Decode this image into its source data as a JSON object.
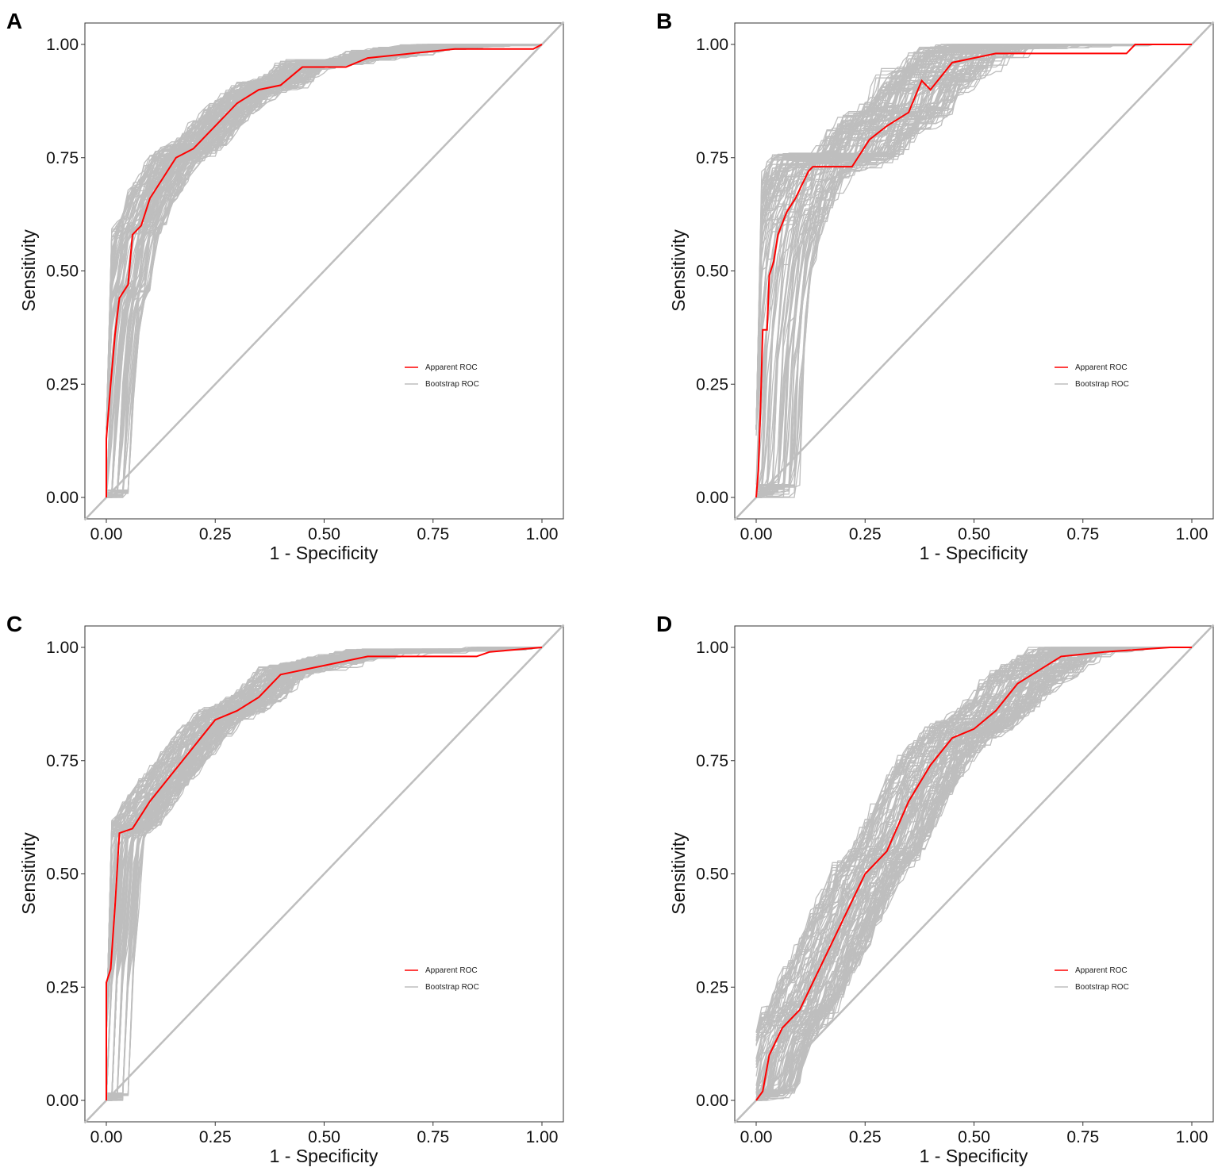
{
  "chart_data": [
    {
      "panel": "A",
      "type": "line",
      "xlabel": "1 - Specificity",
      "ylabel": "Sensitivity",
      "xlim": [
        0,
        1
      ],
      "ylim": [
        0,
        1
      ],
      "xticks": [
        "0.00",
        "0.25",
        "0.50",
        "0.75",
        "1.00"
      ],
      "yticks": [
        "0.00",
        "0.25",
        "0.50",
        "0.75",
        "1.00"
      ],
      "legend": [
        "Apparent ROC",
        "Bootstrap ROC"
      ],
      "legend_position": "lower-right",
      "colors": {
        "apparent": "#ff0000",
        "bootstrap": "#bebebe",
        "diagonal": "#bebebe"
      },
      "bootstrap": {
        "n_curves": 120,
        "spread": 0.055
      },
      "apparent_roc": [
        [
          0,
          0
        ],
        [
          0,
          0.13
        ],
        [
          0.01,
          0.25
        ],
        [
          0.02,
          0.36
        ],
        [
          0.03,
          0.44
        ],
        [
          0.05,
          0.47
        ],
        [
          0.06,
          0.58
        ],
        [
          0.08,
          0.6
        ],
        [
          0.1,
          0.66
        ],
        [
          0.12,
          0.69
        ],
        [
          0.16,
          0.75
        ],
        [
          0.2,
          0.77
        ],
        [
          0.25,
          0.82
        ],
        [
          0.3,
          0.87
        ],
        [
          0.35,
          0.9
        ],
        [
          0.4,
          0.91
        ],
        [
          0.45,
          0.95
        ],
        [
          0.55,
          0.95
        ],
        [
          0.6,
          0.97
        ],
        [
          0.7,
          0.98
        ],
        [
          0.8,
          0.99
        ],
        [
          0.98,
          0.99
        ],
        [
          1,
          1
        ]
      ]
    },
    {
      "panel": "B",
      "type": "line",
      "xlabel": "1 - Specificity",
      "ylabel": "Sensitivity",
      "xlim": [
        0,
        1
      ],
      "ylim": [
        0,
        1
      ],
      "xticks": [
        "0.00",
        "0.25",
        "0.50",
        "0.75",
        "1.00"
      ],
      "yticks": [
        "0.00",
        "0.25",
        "0.50",
        "0.75",
        "1.00"
      ],
      "legend": [
        "Apparent ROC",
        "Bootstrap ROC"
      ],
      "legend_position": "lower-right",
      "colors": {
        "apparent": "#ff0000",
        "bootstrap": "#bebebe",
        "diagonal": "#bebebe"
      },
      "bootstrap": {
        "n_curves": 120,
        "spread": 0.1
      },
      "apparent_roc": [
        [
          0,
          0
        ],
        [
          0.005,
          0.06
        ],
        [
          0.01,
          0.2
        ],
        [
          0.015,
          0.37
        ],
        [
          0.025,
          0.37
        ],
        [
          0.03,
          0.49
        ],
        [
          0.04,
          0.52
        ],
        [
          0.05,
          0.58
        ],
        [
          0.07,
          0.63
        ],
        [
          0.09,
          0.66
        ],
        [
          0.12,
          0.72
        ],
        [
          0.13,
          0.73
        ],
        [
          0.22,
          0.73
        ],
        [
          0.26,
          0.79
        ],
        [
          0.3,
          0.82
        ],
        [
          0.35,
          0.85
        ],
        [
          0.38,
          0.92
        ],
        [
          0.4,
          0.9
        ],
        [
          0.45,
          0.96
        ],
        [
          0.5,
          0.97
        ],
        [
          0.55,
          0.98
        ],
        [
          0.85,
          0.98
        ],
        [
          0.87,
          1
        ],
        [
          1,
          1
        ]
      ]
    },
    {
      "panel": "C",
      "type": "line",
      "xlabel": "1 - Specificity",
      "ylabel": "Sensitivity",
      "xlim": [
        0,
        1
      ],
      "ylim": [
        0,
        1
      ],
      "xticks": [
        "0.00",
        "0.25",
        "0.50",
        "0.75",
        "1.00"
      ],
      "yticks": [
        "0.00",
        "0.25",
        "0.50",
        "0.75",
        "1.00"
      ],
      "legend": [
        "Apparent ROC",
        "Bootstrap ROC"
      ],
      "legend_position": "lower-right",
      "colors": {
        "apparent": "#ff0000",
        "bootstrap": "#bebebe",
        "diagonal": "#bebebe"
      },
      "bootstrap": {
        "n_curves": 120,
        "spread": 0.055
      },
      "apparent_roc": [
        [
          0,
          0
        ],
        [
          0,
          0.26
        ],
        [
          0.01,
          0.29
        ],
        [
          0.02,
          0.43
        ],
        [
          0.03,
          0.59
        ],
        [
          0.06,
          0.6
        ],
        [
          0.1,
          0.66
        ],
        [
          0.15,
          0.72
        ],
        [
          0.2,
          0.78
        ],
        [
          0.25,
          0.84
        ],
        [
          0.3,
          0.86
        ],
        [
          0.35,
          0.89
        ],
        [
          0.4,
          0.94
        ],
        [
          0.45,
          0.95
        ],
        [
          0.5,
          0.96
        ],
        [
          0.6,
          0.98
        ],
        [
          0.85,
          0.98
        ],
        [
          0.88,
          0.99
        ],
        [
          1,
          1
        ]
      ]
    },
    {
      "panel": "D",
      "type": "line",
      "xlabel": "1 - Specificity",
      "ylabel": "Sensitivity",
      "xlim": [
        0,
        1
      ],
      "ylim": [
        0,
        1
      ],
      "xticks": [
        "0.00",
        "0.25",
        "0.50",
        "0.75",
        "1.00"
      ],
      "yticks": [
        "0.00",
        "0.25",
        "0.50",
        "0.75",
        "1.00"
      ],
      "legend": [
        "Apparent ROC",
        "Bootstrap ROC"
      ],
      "legend_position": "lower-right",
      "colors": {
        "apparent": "#ff0000",
        "bootstrap": "#bebebe",
        "diagonal": "#bebebe"
      },
      "bootstrap": {
        "n_curves": 120,
        "spread": 0.08
      },
      "apparent_roc": [
        [
          0,
          0
        ],
        [
          0.015,
          0.02
        ],
        [
          0.03,
          0.1
        ],
        [
          0.06,
          0.16
        ],
        [
          0.1,
          0.2
        ],
        [
          0.15,
          0.3
        ],
        [
          0.2,
          0.4
        ],
        [
          0.25,
          0.5
        ],
        [
          0.3,
          0.55
        ],
        [
          0.35,
          0.66
        ],
        [
          0.4,
          0.74
        ],
        [
          0.45,
          0.8
        ],
        [
          0.5,
          0.82
        ],
        [
          0.55,
          0.86
        ],
        [
          0.6,
          0.92
        ],
        [
          0.65,
          0.95
        ],
        [
          0.7,
          0.98
        ],
        [
          0.8,
          0.99
        ],
        [
          0.95,
          1
        ],
        [
          1,
          1
        ]
      ]
    }
  ]
}
